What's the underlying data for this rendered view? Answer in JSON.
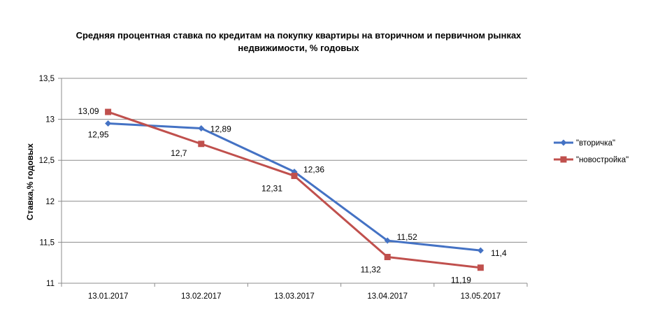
{
  "chart_data": {
    "type": "line",
    "title_lines": [
      "Средняя процентная ставка по кредитам на покупку квартиры на вторичном и первичном рынках",
      "недвижимости, % годовых"
    ],
    "xlabel": "",
    "ylabel": "Ставка,%  годовых",
    "categories": [
      "13.01.2017",
      "13.02.2017",
      "13.03.2017",
      "13.04.2017",
      "13.05.2017"
    ],
    "ylim": [
      11,
      13.5
    ],
    "yticks": [
      "11",
      "11,5",
      "12",
      "12,5",
      "13",
      "13,5"
    ],
    "ytick_values": [
      11,
      11.5,
      12,
      12.5,
      13,
      13.5
    ],
    "grid": true,
    "legend_position": "right",
    "series": [
      {
        "name": "\"вторичка\"",
        "color": "#4472C4",
        "marker": "diamond",
        "values": [
          12.95,
          12.89,
          12.36,
          11.52,
          11.4
        ],
        "labels": [
          "12,95",
          "12,89",
          "12,36",
          "11,52",
          "11,4"
        ]
      },
      {
        "name": "\"новостройка\"",
        "color": "#C0504D",
        "marker": "square",
        "values": [
          13.09,
          12.7,
          12.31,
          11.32,
          11.19
        ],
        "labels": [
          "13,09",
          "12,7",
          "12,31",
          "11,32",
          "11,19"
        ]
      }
    ]
  }
}
